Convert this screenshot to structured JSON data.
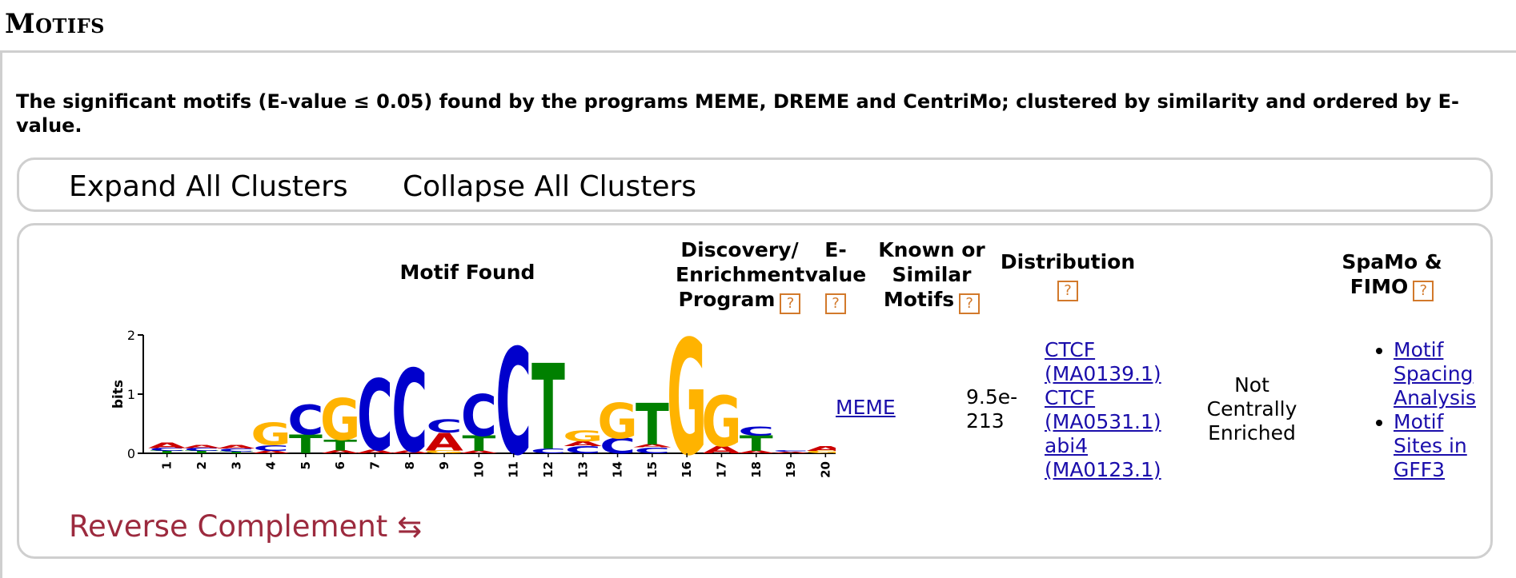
{
  "section": {
    "title": "Motifs"
  },
  "description": "The significant motifs (E-value ≤ 0.05) found by the programs MEME, DREME and CentriMo; clustered by similarity and ordered by E-value.",
  "toolbar": {
    "expand_label": "Expand All Clusters",
    "collapse_label": "Collapse All Clusters"
  },
  "table": {
    "headers": {
      "motif": "Motif Found",
      "program": [
        "Discovery/",
        "Enrichment",
        "Program"
      ],
      "evalue": [
        "E-",
        "value"
      ],
      "known": [
        "Known or",
        "Similar",
        "Motifs"
      ],
      "distribution": "Distribution",
      "spamo": [
        "SpaMo &",
        "FIMO"
      ],
      "help": "?"
    },
    "row": {
      "program": "MEME",
      "evalue": [
        "9.5e-",
        "213"
      ],
      "known": [
        "CTCF",
        "(MA0139.1)",
        "CTCF",
        "(MA0531.1)",
        "abi4",
        "(MA0123.1)"
      ],
      "distribution": [
        "Not",
        "Centrally",
        "Enriched"
      ],
      "spamo": [
        [
          "Motif",
          "Spacing",
          "Analysis"
        ],
        [
          "Motif",
          "Sites in",
          "GFF3"
        ]
      ]
    }
  },
  "logo": {
    "ylabel": "bits",
    "yticks": [
      "0",
      "1",
      "2"
    ],
    "positions": [
      "1",
      "2",
      "3",
      "4",
      "5",
      "6",
      "7",
      "8",
      "9",
      "10",
      "11",
      "12",
      "13",
      "14",
      "15",
      "16",
      "17",
      "18",
      "19",
      "20"
    ],
    "colors": {
      "A": "#cc0000",
      "C": "#0000cc",
      "G": "#ffb300",
      "T": "#008000"
    },
    "stacks": [
      [
        [
          "T",
          0.04
        ],
        [
          "C",
          0.05
        ],
        [
          "A",
          0.1
        ]
      ],
      [
        [
          "T",
          0.04
        ],
        [
          "C",
          0.05
        ],
        [
          "A",
          0.05
        ]
      ],
      [
        [
          "T",
          0.03
        ],
        [
          "C",
          0.05
        ],
        [
          "A",
          0.06
        ]
      ],
      [
        [
          "A",
          0.04
        ],
        [
          "C",
          0.1
        ],
        [
          "G",
          0.38
        ]
      ],
      [
        [
          "T",
          0.32
        ],
        [
          "C",
          0.5
        ]
      ],
      [
        [
          "A",
          0.05
        ],
        [
          "T",
          0.18
        ],
        [
          "G",
          0.7
        ]
      ],
      [
        [
          "A",
          0.06
        ],
        [
          "C",
          1.2
        ]
      ],
      [
        [
          "A",
          0.04
        ],
        [
          "C",
          1.4
        ]
      ],
      [
        [
          "G",
          0.05
        ],
        [
          "A",
          0.3
        ],
        [
          "C",
          0.22
        ]
      ],
      [
        [
          "A",
          0.04
        ],
        [
          "T",
          0.26
        ],
        [
          "C",
          0.7
        ]
      ],
      [
        [
          "C",
          1.8
        ]
      ],
      [
        [
          "C",
          0.08
        ],
        [
          "T",
          1.45
        ]
      ],
      [
        [
          "C",
          0.12
        ],
        [
          "A",
          0.08
        ],
        [
          "G",
          0.18
        ]
      ],
      [
        [
          "C",
          0.26
        ],
        [
          "G",
          0.6
        ]
      ],
      [
        [
          "C",
          0.1
        ],
        [
          "A",
          0.05
        ],
        [
          "T",
          0.7
        ]
      ],
      [
        [
          "G",
          1.95
        ]
      ],
      [
        [
          "A",
          0.12
        ],
        [
          "G",
          0.85
        ]
      ],
      [
        [
          "A",
          0.04
        ],
        [
          "T",
          0.26
        ],
        [
          "C",
          0.16
        ]
      ],
      [
        [
          "A",
          0.02
        ],
        [
          "C",
          0.02
        ]
      ],
      [
        [
          "G",
          0.04
        ],
        [
          "A",
          0.08
        ]
      ]
    ]
  },
  "revcomp": {
    "label": "Reverse Complement",
    "icon": "⇆"
  }
}
